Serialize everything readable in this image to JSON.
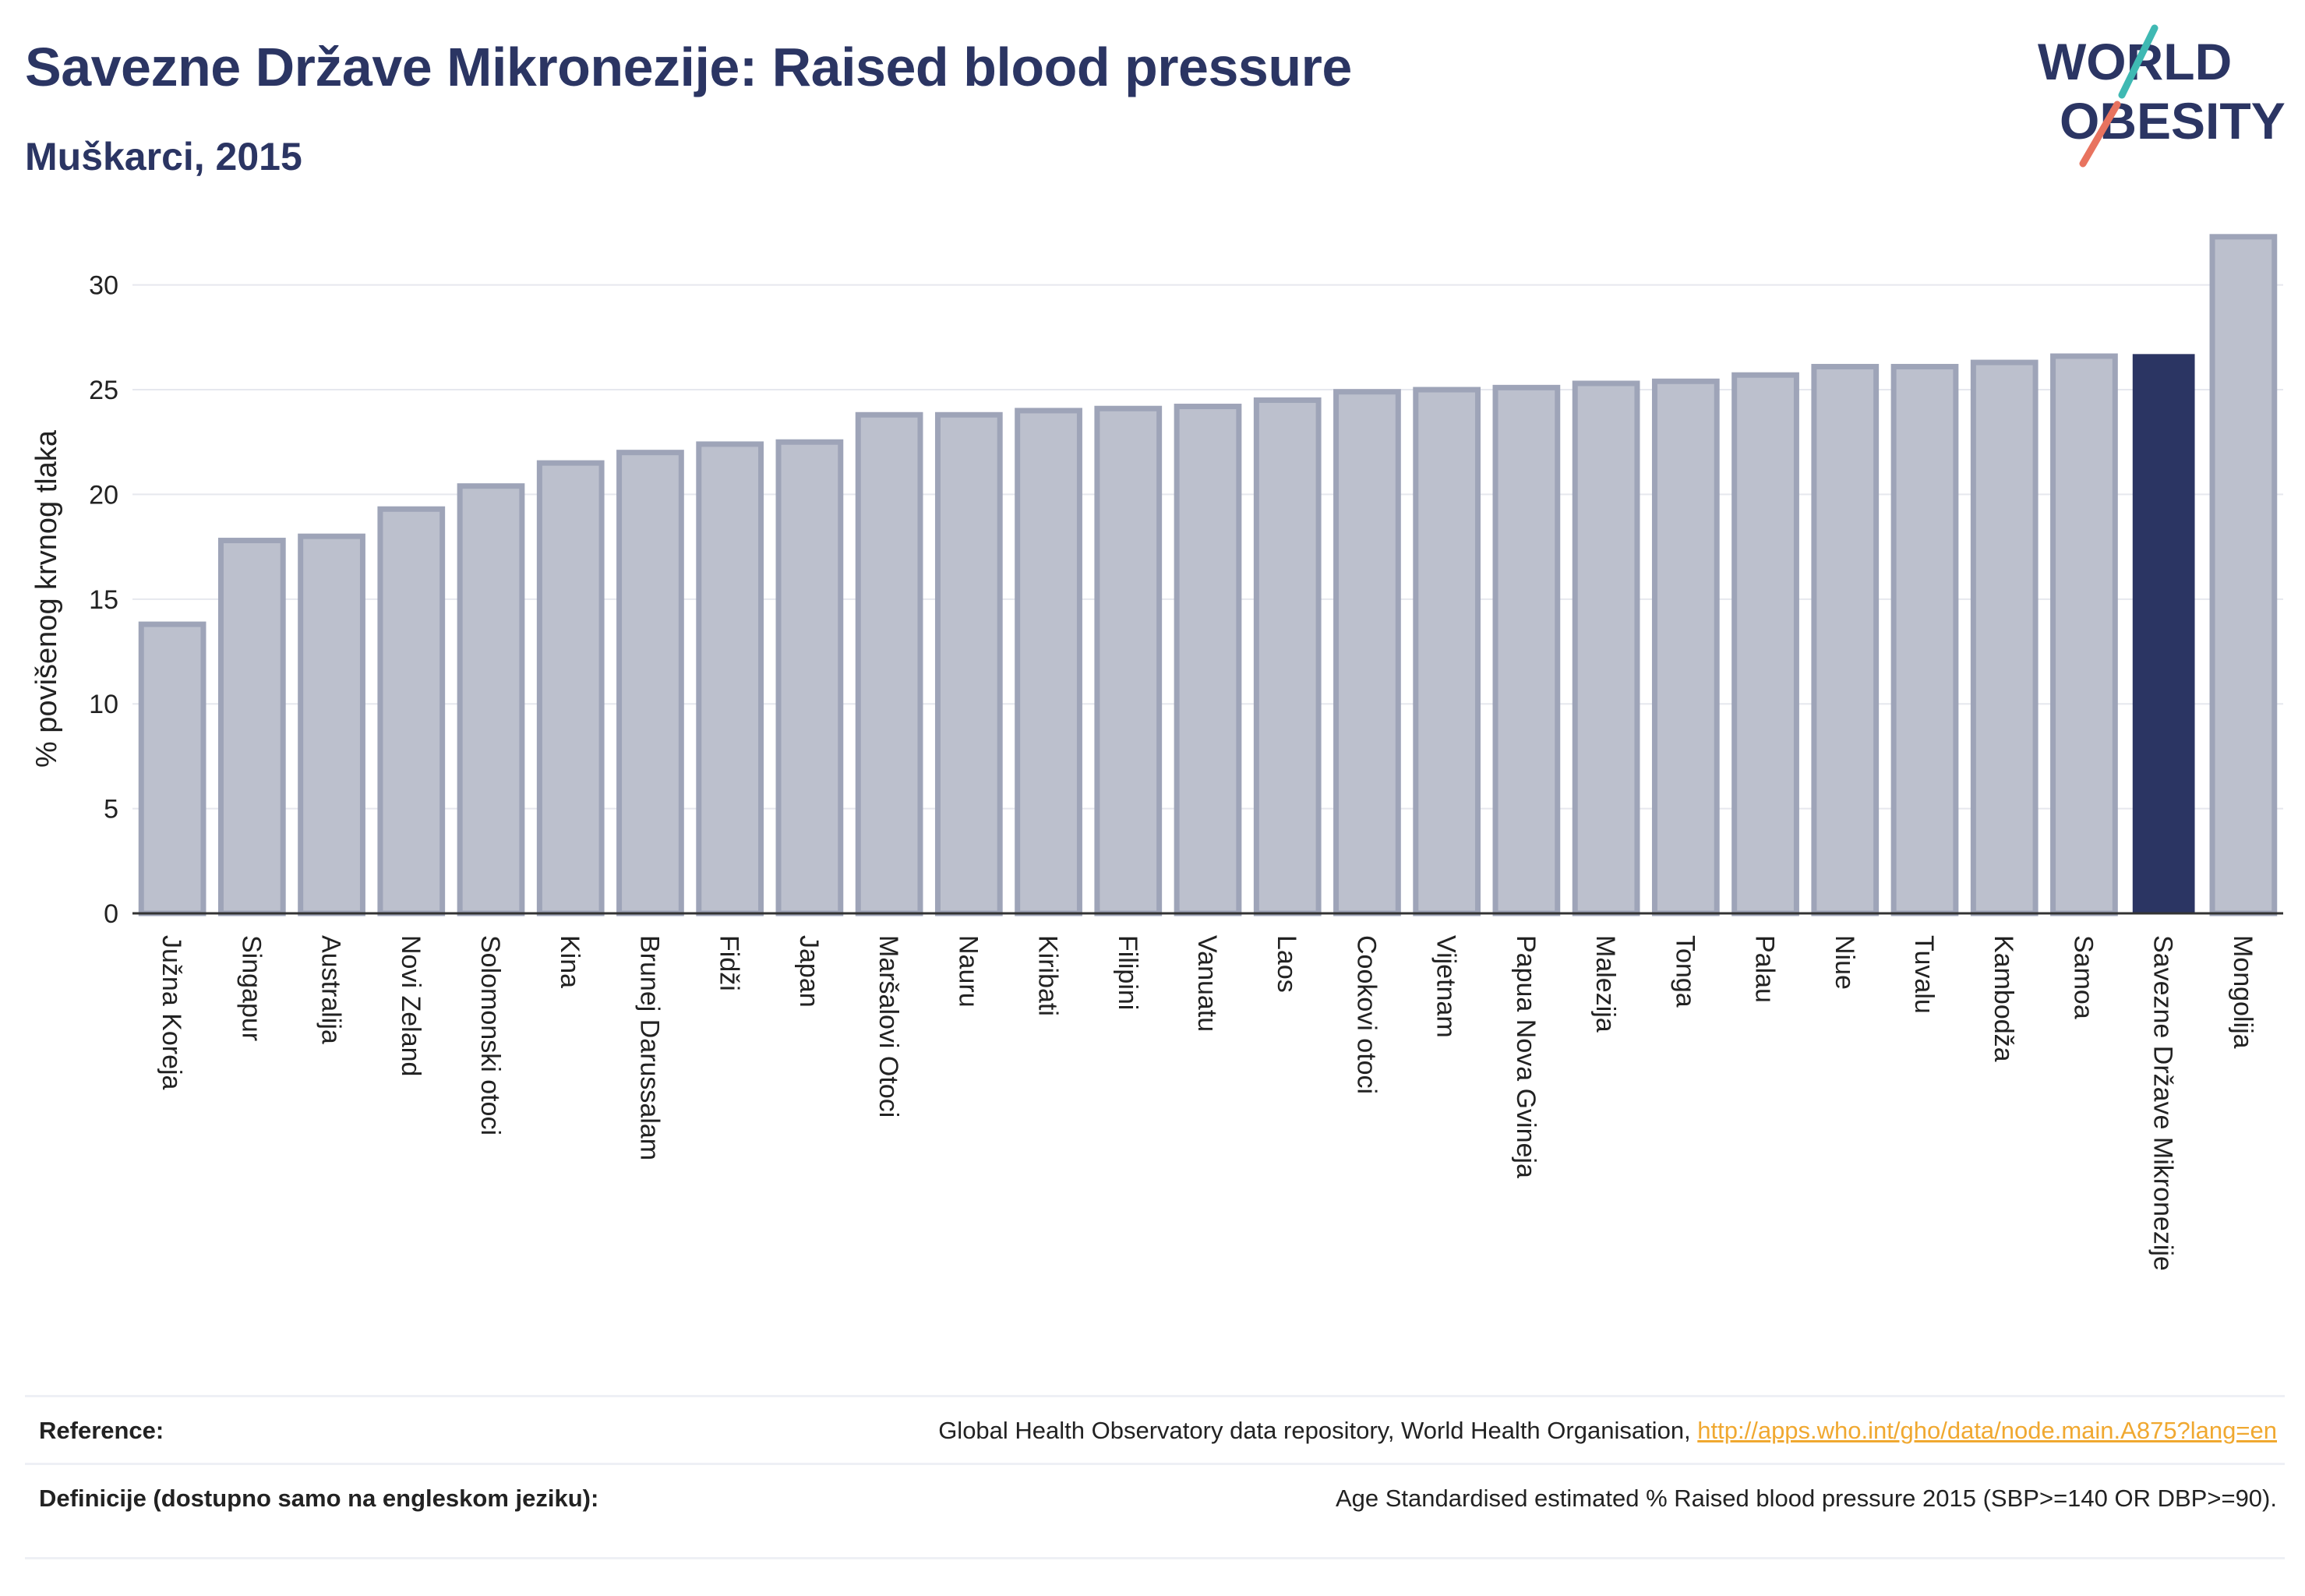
{
  "header": {
    "title": "Savezne Države Mikronezije: Raised blood pressure",
    "subtitle": "Muškarci, 2015"
  },
  "logo": {
    "line1": "WORLD",
    "line2": "OBESITY",
    "colors": {
      "text": "#2b3563",
      "slash_teal": "#3fb9b3",
      "slash_coral": "#e8735f"
    }
  },
  "colors": {
    "bar_fill": "#bcc0cd",
    "bar_stroke": "#9ea4b8",
    "highlight": "#2b3563",
    "grid": "#e6e8ee",
    "axis": "#333333"
  },
  "chart_data": {
    "type": "bar",
    "title": "Savezne Države Mikronezije: Raised blood pressure",
    "subtitle": "Muškarci, 2015",
    "xlabel": "",
    "ylabel": "% povišenog krvnog tlaka",
    "ylim": [
      0,
      33
    ],
    "yticks": [
      0,
      5,
      10,
      15,
      20,
      25,
      30
    ],
    "grid": true,
    "highlight": "Savezne Države Mikronezije",
    "categories": [
      "Južna Koreja",
      "Singapur",
      "Australija",
      "Novi Zeland",
      "Solomonski otoci",
      "Kina",
      "Brunej Darussalam",
      "Fidži",
      "Japan",
      "Maršalovi Otoci",
      "Nauru",
      "Kiribati",
      "Filipini",
      "Vanuatu",
      "Laos",
      "Cookovi otoci",
      "Vijetnam",
      "Papua Nova Gvineja",
      "Malezija",
      "Tonga",
      "Palau",
      "Niue",
      "Tuvalu",
      "Kambodža",
      "Samoa",
      "Savezne Države Mikronezije",
      "Mongolija"
    ],
    "values": [
      13.8,
      17.8,
      18.0,
      19.3,
      20.4,
      21.5,
      22.0,
      22.4,
      22.5,
      23.8,
      23.8,
      24.0,
      24.1,
      24.2,
      24.5,
      24.9,
      25.0,
      25.1,
      25.3,
      25.4,
      25.7,
      26.1,
      26.1,
      26.3,
      26.6,
      26.7,
      32.3
    ]
  },
  "references": {
    "reference_label": "Reference:",
    "reference_text": "Global Health Observatory data repository, World Health Organisation, ",
    "reference_link": "http://apps.who.int/gho/data/node.main.A875?lang=en",
    "definition_label": "Definicije (dostupno samo na engleskom jeziku):",
    "definition_text": "Age Standardised estimated % Raised blood pressure 2015 (SBP>=140 OR DBP>=90)."
  }
}
